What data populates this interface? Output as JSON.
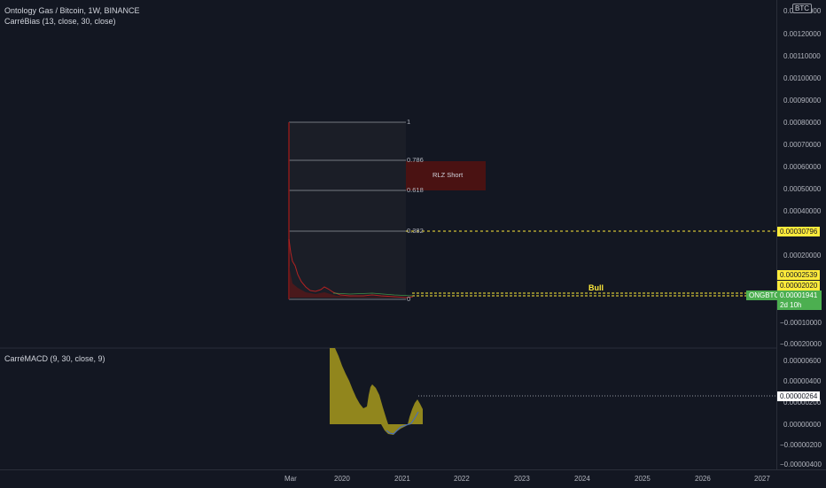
{
  "legend": {
    "main_title": "Ontology Gas / Bitcoin, 1W, BINANCE",
    "indicator_1": "CarréBias (13, close, 30, close)",
    "indicator_2": "CarréMACD (9, 30, close, 9)"
  },
  "currency_badge": "BTC",
  "price_axis": {
    "ticks": [
      "0.00140000",
      "0.00120000",
      "0.00110000",
      "0.00100000",
      "0.00090000",
      "0.00080000",
      "0.00070000",
      "0.00060000",
      "0.00050000",
      "0.00040000",
      "0.00020000",
      "−0.00010000",
      "−0.00020000"
    ],
    "tags": {
      "level_dashed": "0.00030796",
      "tag_upper": "0.00002539",
      "tag_lower": "0.00002020",
      "current_price": "0.00001941",
      "countdown": "2d 10h",
      "symbol": "ONGBTC"
    }
  },
  "macd_axis": {
    "ticks": [
      "0.00000600",
      "0.00000400",
      "0.00000200",
      "0.00000000",
      "−0.00000200",
      "−0.00000400"
    ],
    "current": "0.00000264"
  },
  "time_axis": [
    "Mar",
    "2020",
    "2021",
    "2022",
    "2023",
    "2024",
    "2025",
    "2026",
    "2027"
  ],
  "fibonacci": {
    "levels": [
      "1",
      "0.786",
      "0.618",
      "0.382",
      "0"
    ]
  },
  "annotations": {
    "rlz": "RLZ Short",
    "bull": "Bull"
  },
  "colors": {
    "background": "#131722",
    "fib_line": "#b2b5be",
    "rlz_box": "#4a1212",
    "level_yellow": "#ffeb3b",
    "price_green": "#4caf50",
    "macd_olive": "#a89a1c",
    "price_red": "#ef5350"
  }
}
